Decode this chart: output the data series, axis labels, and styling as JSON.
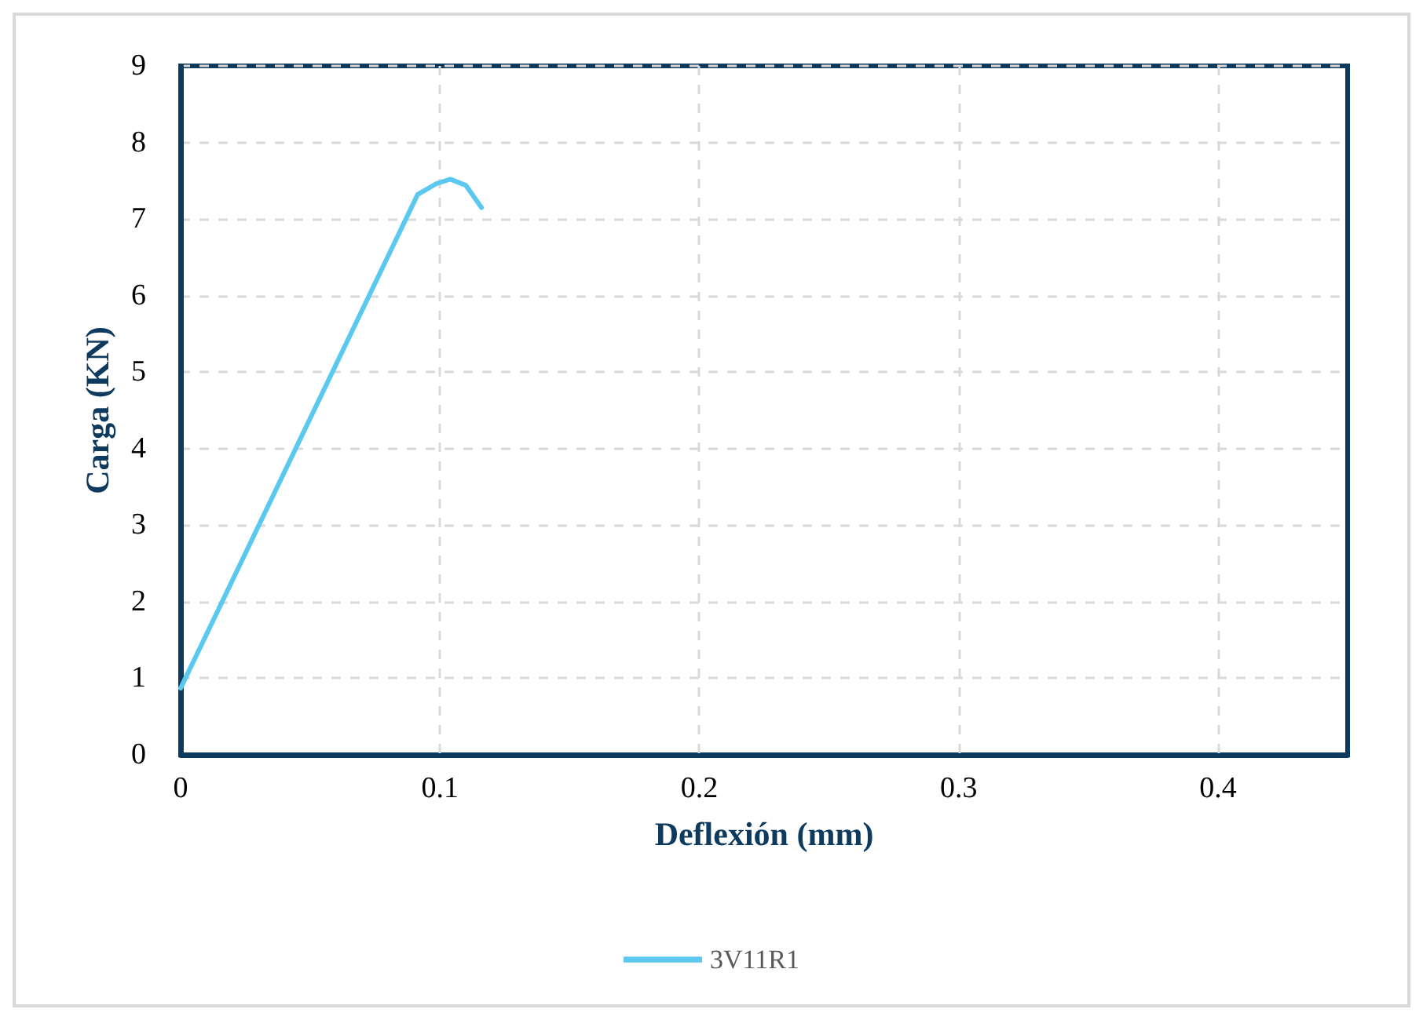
{
  "chart_data": {
    "type": "line",
    "xlabel": "Deflexión (mm)",
    "ylabel": "Carga (KN)",
    "xlim": [
      0,
      0.45
    ],
    "xticks": [
      0,
      0.1,
      0.2,
      0.3,
      0.4
    ],
    "ylim": [
      0,
      9
    ],
    "yticks": [
      0,
      1,
      2,
      3,
      4,
      5,
      6,
      7,
      8,
      9
    ],
    "grid": true,
    "legend": "bottom",
    "marker": "none",
    "line_style": "solid",
    "series": [
      {
        "name": "3V11R1",
        "color": "#5bc8ef",
        "x": [
          0,
          0.0914,
          0.0985,
          0.104,
          0.11,
          0.116
        ],
        "values": [
          0.87,
          7.32,
          7.46,
          7.52,
          7.44,
          7.15
        ]
      }
    ]
  }
}
